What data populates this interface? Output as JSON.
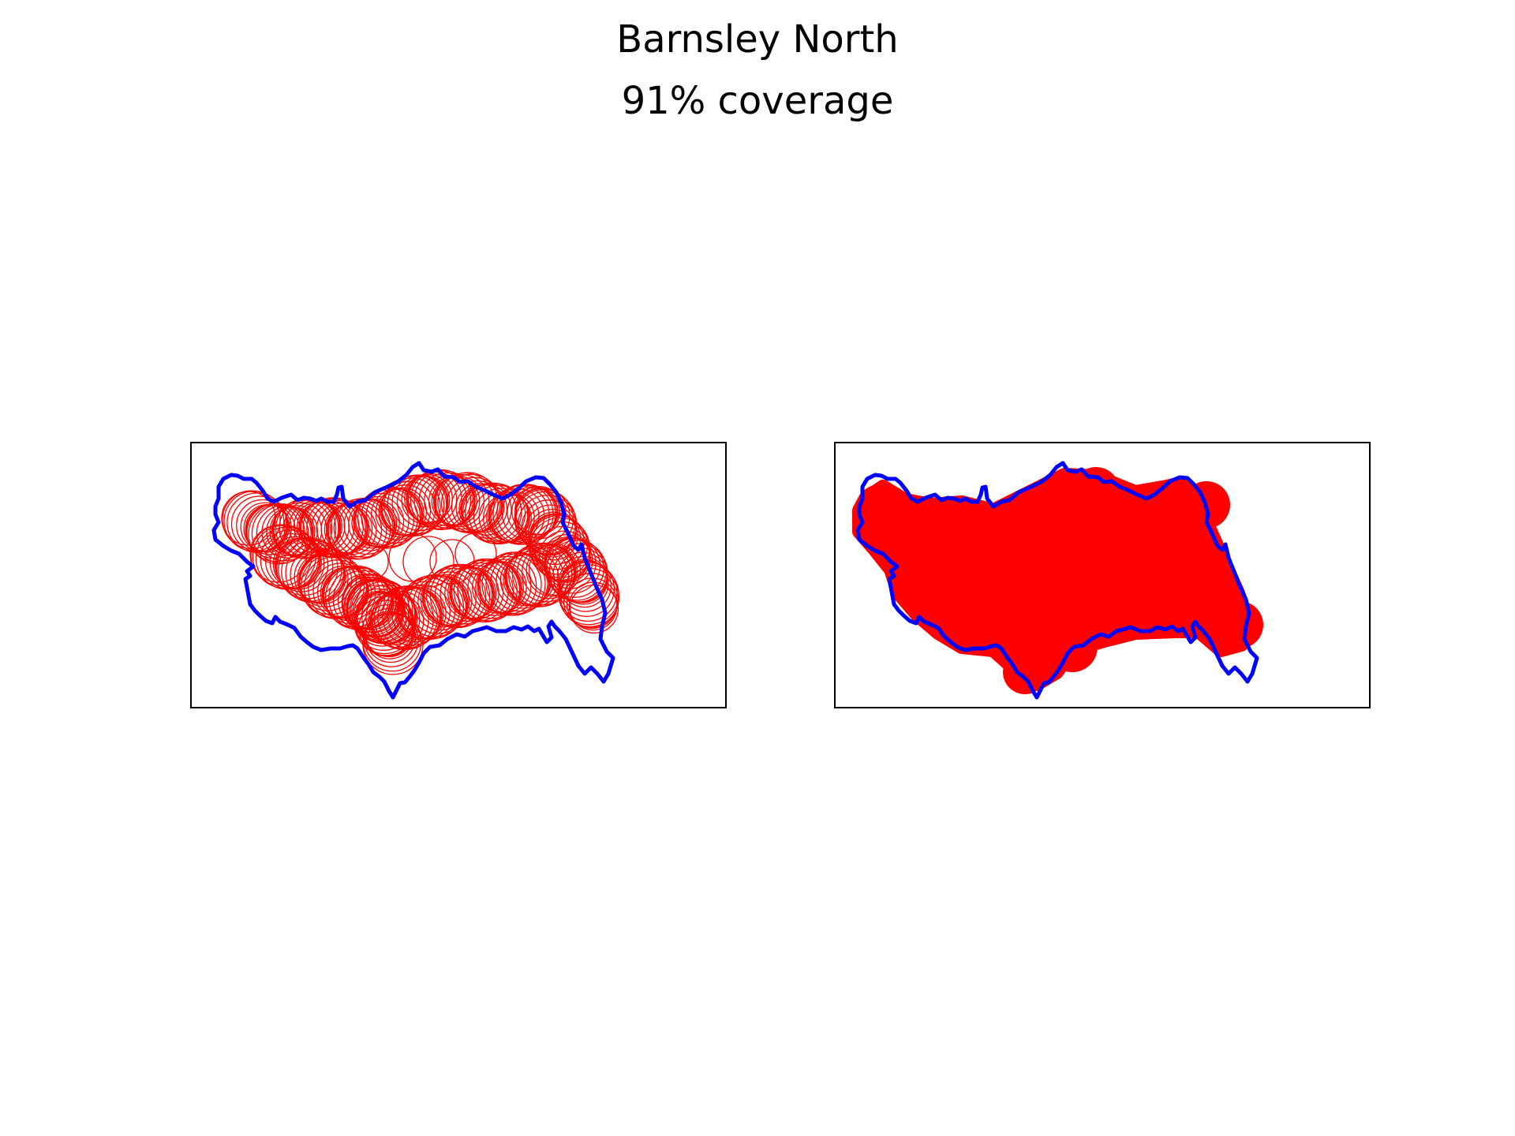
{
  "figure": {
    "title": "Barnsley North",
    "subtitle": "91% coverage"
  },
  "colors": {
    "boundary": "#0000ff",
    "coverage": "#ff0000",
    "frame": "#000000",
    "background": "#ffffff"
  },
  "panels": [
    {
      "name": "circles",
      "style": "outline"
    },
    {
      "name": "filled",
      "style": "filled"
    }
  ]
}
